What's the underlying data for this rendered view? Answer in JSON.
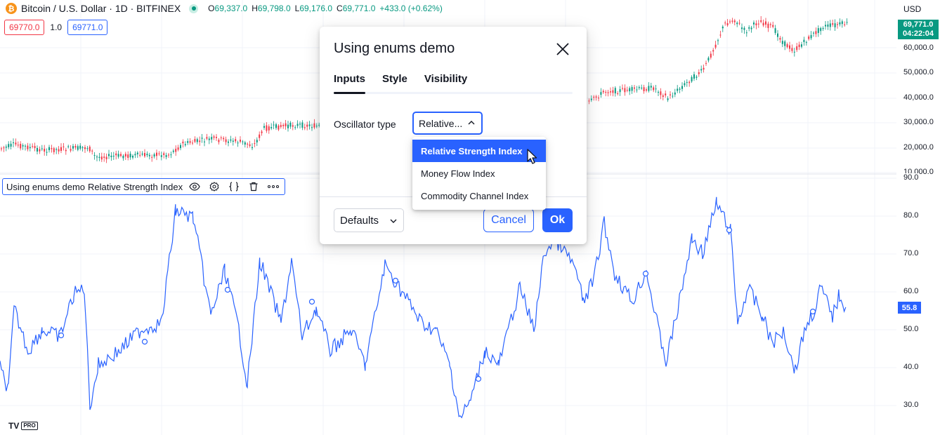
{
  "header": {
    "symbol_logo": "₿",
    "symbol_title": "Bitcoin / U.S. Dollar · 1D · BITFINEX",
    "ohlc": {
      "o_key": "O",
      "o_val": "69,337.0",
      "h_key": "H",
      "h_val": "69,798.0",
      "l_key": "L",
      "l_val": "69,176.0",
      "c_key": "C",
      "c_val": "69,771.0",
      "change": "+433.0 (+0.62%)"
    },
    "bid": "69770.0",
    "spread": "1.0",
    "ask": "69771.0",
    "currency": "USD",
    "last_price": "69,771.0",
    "countdown": "04:22:04"
  },
  "price_axis": [
    "60,000.0",
    "50,000.0",
    "40,000.0",
    "30,000.0",
    "20,000.0",
    "10,000.0"
  ],
  "rsi_axis": [
    "90.0",
    "80.0",
    "70.0",
    "60.0",
    "50.0",
    "40.0",
    "30.0"
  ],
  "rsi_last": "55.8",
  "indicator_legend": {
    "name": "Using enums demo",
    "param": "Relative Strength Index",
    "icons": [
      "eye-icon",
      "settings-icon",
      "source-code-icon",
      "trash-icon",
      "more-icon"
    ]
  },
  "colors": {
    "up": "#089981",
    "down": "#f23645",
    "accent": "#2962ff",
    "rsi_line": "#2962ff"
  },
  "dialog": {
    "title": "Using enums demo",
    "tabs": [
      "Inputs",
      "Style",
      "Visibility"
    ],
    "field_label": "Oscillator type",
    "select_value": "Relative...",
    "options": [
      "Relative Strength Index",
      "Money Flow Index",
      "Commodity Channel Index"
    ],
    "defaults_label": "Defaults",
    "cancel_label": "Cancel",
    "ok_label": "Ok"
  },
  "watermark": {
    "logo": "TV",
    "badge": "PRO"
  }
}
